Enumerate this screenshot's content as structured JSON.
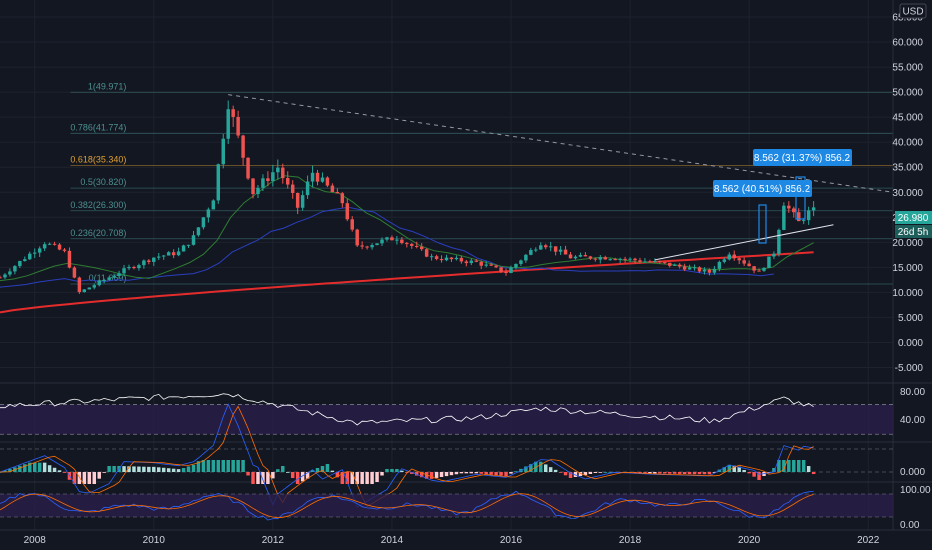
{
  "header": {
    "currency": "USD"
  },
  "colors": {
    "background": "#131722",
    "up": "#26a69a",
    "down": "#ef5350",
    "grid": "#1e222d",
    "text": "#d1d4dc",
    "fib": "#4c8f8f",
    "fib_618": "#e0a030",
    "ma_long": "#e52c2c",
    "ma_mid": "#2a3fbf",
    "ma_short": "#2e7d32",
    "rsi": "#ffffff",
    "rsi_band": "#2a1e4a",
    "stoch_k": "#2962ff",
    "stoch_d": "#ff6d00",
    "price_tag": "#26a69a",
    "measure": "#1e88e5"
  },
  "price_axis": {
    "ticks": [
      "65.000",
      "60.000",
      "55.000",
      "50.000",
      "45.000",
      "40.000",
      "35.000",
      "30.000",
      "25.000",
      "20.000",
      "15.000",
      "10.000",
      "5.000",
      "0.000",
      "-5.000"
    ],
    "last_price": "26.980",
    "countdown": "26d 5h"
  },
  "time_axis": {
    "labels": [
      "2008",
      "2010",
      "2012",
      "2014",
      "2016",
      "2018",
      "2020",
      "2022"
    ]
  },
  "fib_levels": [
    {
      "label": "1(49.971)",
      "value": 49.971
    },
    {
      "label": "0.786(41.774)",
      "value": 41.774
    },
    {
      "label": "0.618(35.340)",
      "value": 35.34
    },
    {
      "label": "0.5(30.820)",
      "value": 30.82
    },
    {
      "label": "0.382(26.300)",
      "value": 26.3
    },
    {
      "label": "0.236(20.708)",
      "value": 20.708
    },
    {
      "label": "0(11.669)",
      "value": 11.669
    }
  ],
  "measure_boxes": [
    {
      "text": "8.562 (31.37%) 856.2"
    },
    {
      "text": "8.562 (40.51%) 856.2"
    }
  ],
  "rsi_axis": [
    "80.00",
    "40.00"
  ],
  "macd_axis": [
    "0.000"
  ],
  "stoch_axis": [
    "100.00",
    "0.00"
  ],
  "chart_data": {
    "type": "candlestick",
    "interval": "month",
    "x_range": [
      "2007-06",
      "2022-06"
    ],
    "ylim": [
      -7.5,
      68
    ],
    "y_scale": "linear",
    "grid": true,
    "price_key_points": [
      {
        "t": "2007-06",
        "close": 13
      },
      {
        "t": "2008-03",
        "close": 20
      },
      {
        "t": "2008-07",
        "close": 18
      },
      {
        "t": "2008-10",
        "close": 10
      },
      {
        "t": "2009-06",
        "close": 14
      },
      {
        "t": "2010-01",
        "close": 17
      },
      {
        "t": "2010-06",
        "close": 18
      },
      {
        "t": "2010-09",
        "close": 21
      },
      {
        "t": "2011-01",
        "close": 29
      },
      {
        "t": "2011-04",
        "close": 48
      },
      {
        "t": "2011-09",
        "close": 30
      },
      {
        "t": "2012-02",
        "close": 35
      },
      {
        "t": "2012-06",
        "close": 27
      },
      {
        "t": "2012-09",
        "close": 34
      },
      {
        "t": "2013-03",
        "close": 28
      },
      {
        "t": "2013-06",
        "close": 19
      },
      {
        "t": "2014-02",
        "close": 21
      },
      {
        "t": "2014-09",
        "close": 17
      },
      {
        "t": "2015-06",
        "close": 16
      },
      {
        "t": "2015-12",
        "close": 14
      },
      {
        "t": "2016-07",
        "close": 20
      },
      {
        "t": "2017-01",
        "close": 17
      },
      {
        "t": "2017-09",
        "close": 17
      },
      {
        "t": "2018-06",
        "close": 16
      },
      {
        "t": "2018-12",
        "close": 15
      },
      {
        "t": "2019-05",
        "close": 14
      },
      {
        "t": "2019-09",
        "close": 18
      },
      {
        "t": "2020-03",
        "close": 14
      },
      {
        "t": "2020-06",
        "close": 18
      },
      {
        "t": "2020-08",
        "close": 28
      },
      {
        "t": "2020-11",
        "close": 24
      },
      {
        "t": "2021-02",
        "close": 26.98
      }
    ],
    "moving_averages": [
      {
        "t0": "2007-06",
        "v0": 6,
        "t1": "2021-02",
        "v1": 18
      },
      {
        "t0": "2007-06",
        "v0": 10,
        "t1": "2020-06",
        "v1": 22
      },
      {
        "t0": "2007-06",
        "v0": 12,
        "t1": "2021-02",
        "v1": 17
      }
    ],
    "trendlines": [
      {
        "t0": "2011-04",
        "v0": 49.5,
        "t1": "2022-06",
        "v1": 30
      },
      {
        "t0": "2018-06",
        "v0": 16.5,
        "t1": "2021-06",
        "v1": 23.5
      }
    ],
    "rsi_key_points": [
      {
        "t": "2007-06",
        "v": 68
      },
      {
        "t": "2011-04",
        "v": 85
      },
      {
        "t": "2013-06",
        "v": 45
      },
      {
        "t": "2015-06",
        "v": 52
      },
      {
        "t": "2016-07",
        "v": 65
      },
      {
        "t": "2019-06",
        "v": 48
      },
      {
        "t": "2020-08",
        "v": 78
      },
      {
        "t": "2021-02",
        "v": 66
      }
    ],
    "rsi_ylim": [
      25,
      95
    ],
    "rsi_lines": [
      70,
      30
    ]
  }
}
